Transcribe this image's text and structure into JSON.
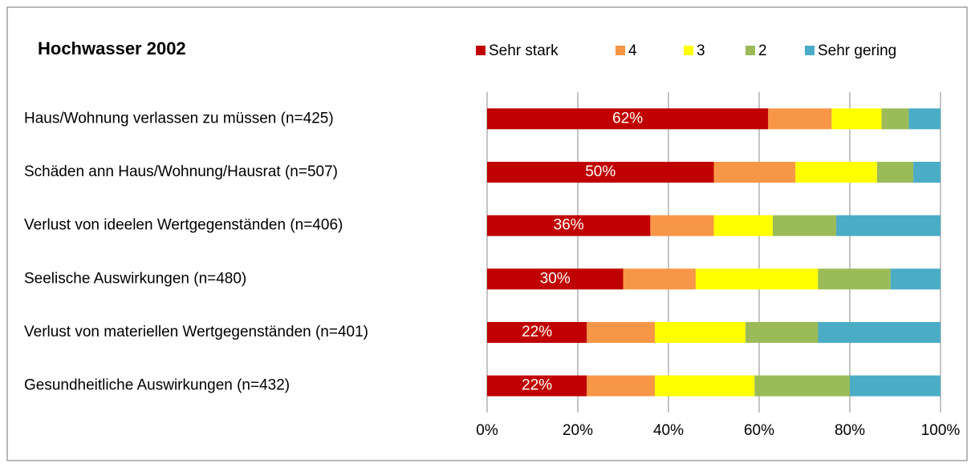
{
  "chart_data": {
    "type": "stacked_bar_horizontal",
    "title": "Hochwasser 2002",
    "categories": [
      "Haus/Wohnung verlassen zu müssen (n=425)",
      "Schäden ann Haus/Wohnung/Hausrat (n=507)",
      "Verlust von ideelen Wertgegenständen (n=406)",
      "Seelische Auswirkungen (n=480)",
      "Verlust von materiellen Wertgegenständen (n=401)",
      "Gesundheitliche Auswirkungen (n=432)"
    ],
    "series": [
      {
        "name": "Sehr stark",
        "color": "#c00000",
        "values": [
          62,
          50,
          36,
          30,
          22,
          22
        ],
        "value_labels": [
          "62%",
          "50%",
          "36%",
          "30%",
          "22%",
          "22%"
        ]
      },
      {
        "name": "4",
        "color": "#f79646",
        "values": [
          14,
          18,
          14,
          16,
          15,
          15
        ]
      },
      {
        "name": "3",
        "color": "#ffff00",
        "values": [
          11,
          18,
          13,
          27,
          20,
          22
        ]
      },
      {
        "name": "2",
        "color": "#9bbb59",
        "values": [
          6,
          8,
          14,
          16,
          16,
          21
        ]
      },
      {
        "name": "Sehr gering",
        "color": "#4bacc6",
        "values": [
          7,
          6,
          23,
          11,
          27,
          20
        ]
      }
    ],
    "xlim": [
      0,
      100
    ],
    "xticks": [
      {
        "value": 0,
        "label": "0%"
      },
      {
        "value": 20,
        "label": "20%"
      },
      {
        "value": 40,
        "label": "40%"
      },
      {
        "value": 60,
        "label": "60%"
      },
      {
        "value": 80,
        "label": "80%"
      },
      {
        "value": 100,
        "label": "100%"
      }
    ],
    "grid": true,
    "legend": "top"
  }
}
